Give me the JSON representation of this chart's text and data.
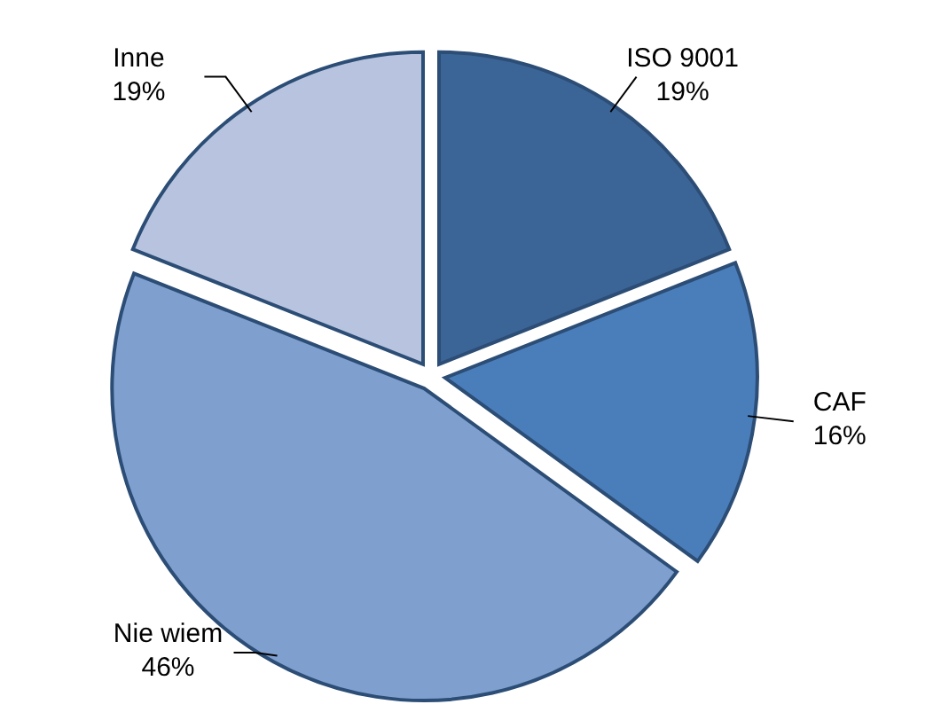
{
  "chart_data": {
    "type": "pie",
    "categories": [
      "ISO 9001",
      "CAF",
      "Nie wiem",
      "Inne"
    ],
    "values": [
      19,
      16,
      46,
      19
    ],
    "colors": [
      "#3c6597",
      "#4a7ebb",
      "#7f9fcf",
      "#b8c4df"
    ],
    "value_labels": [
      "19%",
      "16%",
      "46%",
      "19%"
    ]
  }
}
